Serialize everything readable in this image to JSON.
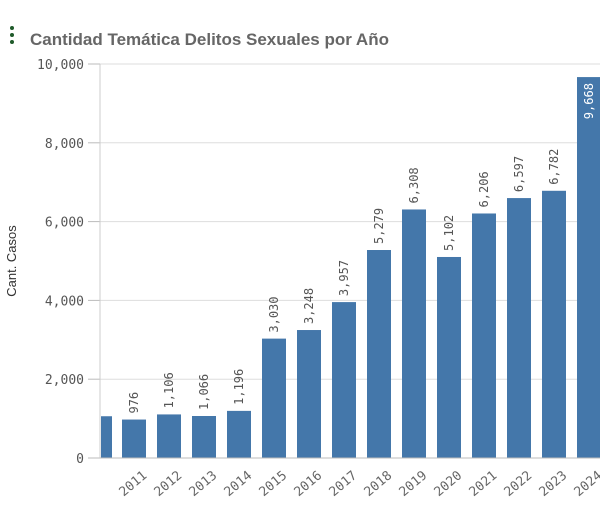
{
  "header": {
    "title": "Cantidad Temática Delitos Sexuales por Año",
    "menu_icon": "vertical-dots-icon"
  },
  "chart_data": {
    "type": "bar",
    "title": "Cantidad Temática Delitos Sexuales por Año",
    "xlabel": "",
    "ylabel": "Cant. Casos",
    "ylim": [
      0,
      10000
    ],
    "yticks": [
      "0",
      "2,000",
      "4,000",
      "6,000",
      "8,000",
      "10,000"
    ],
    "yticks_values": [
      0,
      2000,
      4000,
      6000,
      8000,
      10000
    ],
    "clipped_leading_bar_value": 1060,
    "categories": [
      "2011",
      "2012",
      "2013",
      "2014",
      "2015",
      "2016",
      "2017",
      "2018",
      "2019",
      "2020",
      "2021",
      "2022",
      "2023",
      "2024"
    ],
    "values": [
      976,
      1106,
      1066,
      1196,
      3030,
      3248,
      3957,
      5279,
      6308,
      5102,
      6206,
      6597,
      6782,
      9668
    ],
    "labels": [
      "976",
      "1,106",
      "1,066",
      "1,196",
      "3,030",
      "3,248",
      "3,957",
      "5,279",
      "6,308",
      "5,102",
      "6,206",
      "6,597",
      "6,782",
      "9,668"
    ],
    "color": "#4477aa",
    "grid": true
  }
}
